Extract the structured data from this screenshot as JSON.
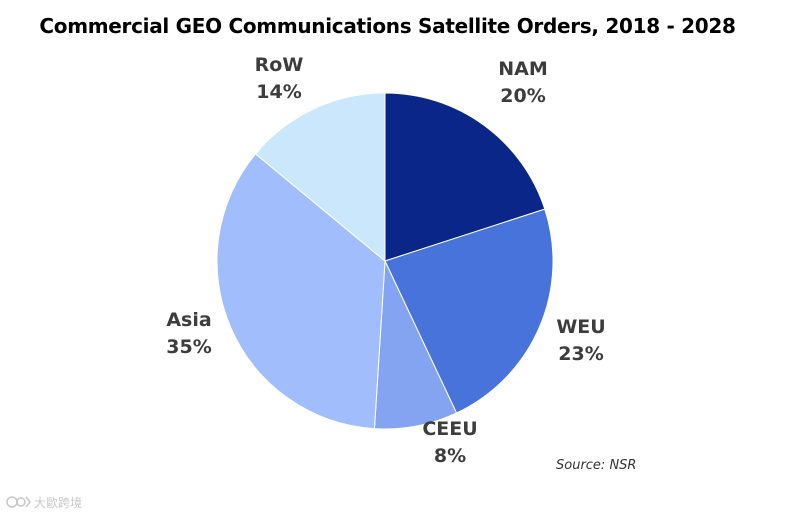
{
  "chart_data": {
    "type": "pie",
    "title": "Commercial GEO Communications Satellite Orders, 2018 - 2028",
    "slices": [
      {
        "name": "NAM",
        "value": 20,
        "value_label": "20%",
        "color": "#0a2689"
      },
      {
        "name": "WEU",
        "value": 23,
        "value_label": "23%",
        "color": "#4773da"
      },
      {
        "name": "CEEU",
        "value": 8,
        "value_label": "8%",
        "color": "#84a4f2"
      },
      {
        "name": "Asia",
        "value": 35,
        "value_label": "35%",
        "color": "#a1bdfb"
      },
      {
        "name": "RoW",
        "value": 14,
        "value_label": "14%",
        "color": "#cbe7fb"
      }
    ],
    "start_angle": "12 o'clock",
    "direction": "clockwise",
    "legend": "none",
    "source": "Source: NSR"
  },
  "watermark": {
    "text": "大歐跨境",
    "icon": "watermark-logo-icon"
  }
}
